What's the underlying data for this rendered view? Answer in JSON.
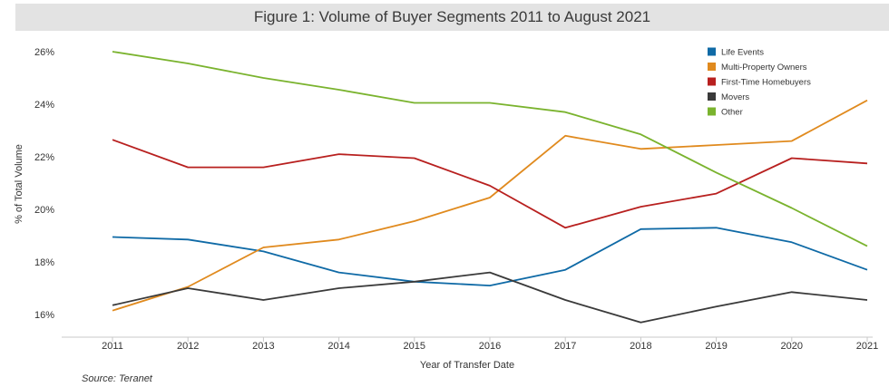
{
  "chart_data": {
    "type": "line",
    "title": "Figure 1: Volume of Buyer Segments 2011 to August 2021",
    "xlabel": "Year of Transfer Date",
    "ylabel": "% of Total Volume",
    "categories": [
      "2011",
      "2012",
      "2013",
      "2014",
      "2015",
      "2016",
      "2017",
      "2018",
      "2019",
      "2020",
      "2021"
    ],
    "ylim": [
      15.2,
      26.6
    ],
    "yticks": [
      16,
      18,
      20,
      22,
      24,
      26
    ],
    "ytick_labels": [
      "16%",
      "18%",
      "20%",
      "22%",
      "24%",
      "26%"
    ],
    "legend_position": "top-right",
    "series": [
      {
        "name": "Life Events",
        "color": "#0f6aa6",
        "values": [
          18.95,
          18.85,
          18.4,
          17.6,
          17.25,
          17.1,
          17.7,
          19.25,
          19.3,
          18.75,
          17.7
        ]
      },
      {
        "name": "Multi-Property Owners",
        "color": "#e08a1e",
        "values": [
          16.15,
          17.05,
          18.55,
          18.85,
          19.55,
          20.45,
          22.8,
          22.3,
          22.45,
          22.6,
          24.15
        ]
      },
      {
        "name": "First-Time Homebuyers",
        "color": "#b8201f",
        "values": [
          22.65,
          21.6,
          21.6,
          22.1,
          21.95,
          20.9,
          19.3,
          20.1,
          20.6,
          21.95,
          21.75
        ]
      },
      {
        "name": "Movers",
        "color": "#3a3a3a",
        "values": [
          16.35,
          17.0,
          16.55,
          17.0,
          17.25,
          17.6,
          16.55,
          15.7,
          16.3,
          16.85,
          16.55
        ]
      },
      {
        "name": "Other",
        "color": "#7ab32e",
        "values": [
          26.0,
          25.55,
          25.0,
          24.55,
          24.05,
          24.05,
          23.7,
          22.85,
          21.4,
          20.05,
          18.6
        ]
      }
    ]
  },
  "source": "Source: Teranet"
}
